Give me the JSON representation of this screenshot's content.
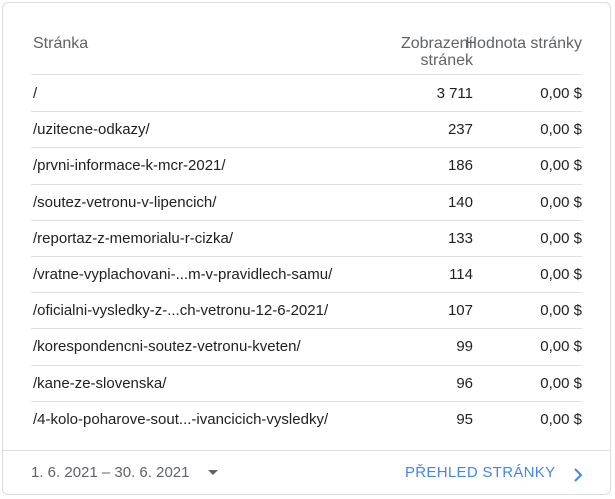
{
  "table": {
    "columns": [
      "Stránka",
      "Zobrazení stránek",
      "Hodnota stránky"
    ],
    "rows": [
      [
        "/",
        "3 711",
        "0,00 $"
      ],
      [
        "/uzitecne-odkazy/",
        "237",
        "0,00 $"
      ],
      [
        "/prvni-informace-k-mcr-2021/",
        "186",
        "0,00 $"
      ],
      [
        "/soutez-vetronu-v-lipencich/",
        "140",
        "0,00 $"
      ],
      [
        "/reportaz-z-memorialu-r-cizka/",
        "133",
        "0,00 $"
      ],
      [
        "/vratne-vyplachovani-...m-v-pravidlech-samu/",
        "114",
        "0,00 $"
      ],
      [
        "/oficialni-vysledky-z-...ch-vetronu-12-6-2021/",
        "107",
        "0,00 $"
      ],
      [
        "/korespondencni-soutez-vetronu-kveten/",
        "99",
        "0,00 $"
      ],
      [
        "/kane-ze-slovenska/",
        "96",
        "0,00 $"
      ],
      [
        "/4-kolo-poharove-sout...-ivancicich-vysledky/",
        "95",
        "0,00 $"
      ]
    ]
  },
  "footer": {
    "date_range": "1. 6. 2021 – 30. 6. 2021",
    "link": "PŘEHLED STRÁNKY"
  }
}
